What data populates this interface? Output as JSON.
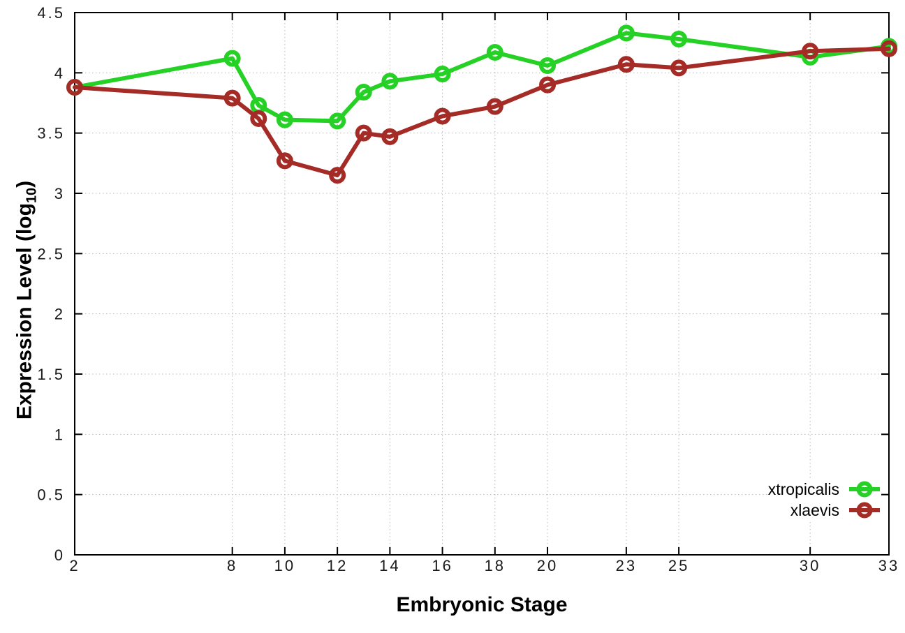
{
  "chart_data": {
    "type": "line",
    "title": "",
    "xlabel": "Embryonic Stage",
    "ylabel": "Expression Level (log10)",
    "ylabel_parts": {
      "prefix": "Expression Level (log",
      "sub": "10",
      "suffix": ")"
    },
    "x": [
      2,
      8,
      9,
      10,
      12,
      13,
      14,
      16,
      18,
      20,
      23,
      25,
      30,
      33
    ],
    "xticks": [
      2,
      8,
      10,
      12,
      14,
      16,
      18,
      20,
      23,
      25,
      30,
      33
    ],
    "yticks": [
      0,
      0.5,
      1,
      1.5,
      2,
      2.5,
      3,
      3.5,
      4,
      4.5
    ],
    "xlim": [
      2,
      33
    ],
    "ylim": [
      0,
      4.5
    ],
    "grid": true,
    "legend_position": "bottom-right",
    "marker": "open-circle",
    "series": [
      {
        "name": "xtropicalis",
        "color": "#25D125",
        "values": [
          3.88,
          4.12,
          3.73,
          3.61,
          3.6,
          3.84,
          3.93,
          3.99,
          4.17,
          4.06,
          4.33,
          4.28,
          4.13,
          4.22
        ]
      },
      {
        "name": "xlaevis",
        "color": "#A42B26",
        "values": [
          3.88,
          3.79,
          3.62,
          3.27,
          3.15,
          3.5,
          3.47,
          3.64,
          3.72,
          3.9,
          4.07,
          4.04,
          4.18,
          4.2
        ]
      }
    ]
  },
  "colors": {
    "background": "#ffffff",
    "border": "#000000",
    "gridline": "#b8b8b8",
    "tick_label": "#1a1a1a"
  }
}
